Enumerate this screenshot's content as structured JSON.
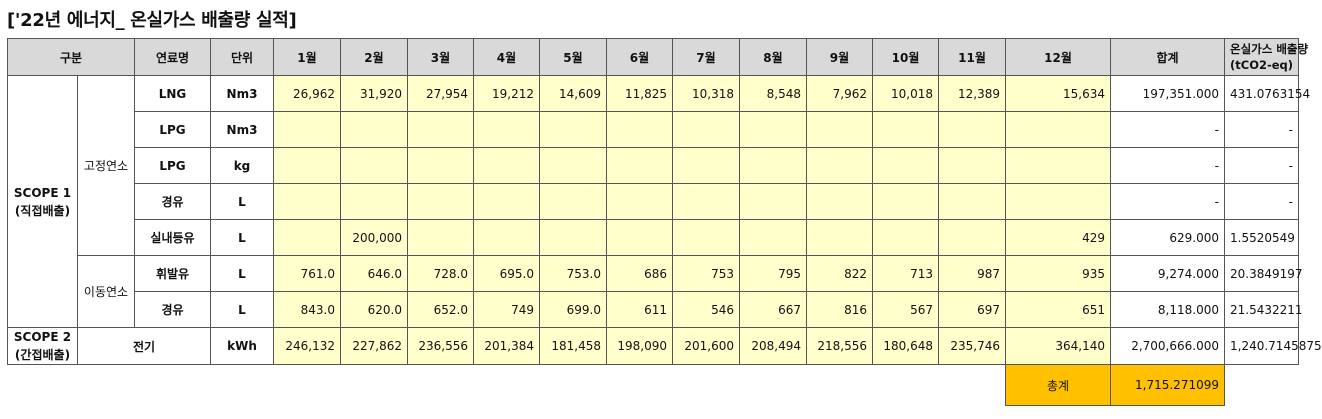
{
  "title": "['22년 에너지_ 온실가스 배출량 실적]",
  "headers": {
    "category": "구분",
    "fuel": "연료명",
    "unit": "단위",
    "months": [
      "1월",
      "2월",
      "3월",
      "4월",
      "5월",
      "6월",
      "7월",
      "8월",
      "9월",
      "10월",
      "11월",
      "12월"
    ],
    "total": "합계",
    "emission_line1": "온실가스 배출량",
    "emission_line2": "(tCO2-eq)"
  },
  "groups": {
    "scope1_line1": "SCOPE 1",
    "scope1_line2": "(직접배출)",
    "stationary": "고정연소",
    "mobile": "이동연소",
    "scope2_line1": "SCOPE 2",
    "scope2_line2": "(간접배출)",
    "electricity": "전기"
  },
  "rows": [
    {
      "fuel": "LNG",
      "unit": "Nm3",
      "months": [
        "26,962",
        "31,920",
        "27,954",
        "19,212",
        "14,609",
        "11,825",
        "10,318",
        "8,548",
        "7,962",
        "10,018",
        "12,389",
        "15,634"
      ],
      "total": "197,351.000",
      "emission": "431.0763154"
    },
    {
      "fuel": "LPG",
      "unit": "Nm3",
      "months": [
        "",
        "",
        "",
        "",
        "",
        "",
        "",
        "",
        "",
        "",
        "",
        ""
      ],
      "total": "-",
      "emission": "-"
    },
    {
      "fuel": "LPG",
      "unit": "kg",
      "months": [
        "",
        "",
        "",
        "",
        "",
        "",
        "",
        "",
        "",
        "",
        "",
        ""
      ],
      "total": "-",
      "emission": "-"
    },
    {
      "fuel": "경유",
      "unit": "L",
      "months": [
        "",
        "",
        "",
        "",
        "",
        "",
        "",
        "",
        "",
        "",
        "",
        ""
      ],
      "total": "-",
      "emission": "-"
    },
    {
      "fuel": "실내등유",
      "unit": "L",
      "months": [
        "",
        "200,000",
        "",
        "",
        "",
        "",
        "",
        "",
        "",
        "",
        "",
        "429"
      ],
      "total": "629.000",
      "emission": "1.5520549"
    },
    {
      "fuel": "휘발유",
      "unit": "L",
      "months": [
        "761.0",
        "646.0",
        "728.0",
        "695.0",
        "753.0",
        "686",
        "753",
        "795",
        "822",
        "713",
        "987",
        "935"
      ],
      "total": "9,274.000",
      "emission": "20.3849197"
    },
    {
      "fuel": "경유",
      "unit": "L",
      "months": [
        "843.0",
        "620.0",
        "652.0",
        "749",
        "699.0",
        "611",
        "546",
        "667",
        "816",
        "567",
        "697",
        "651"
      ],
      "total": "8,118.000",
      "emission": "21.5432211"
    },
    {
      "fuel": "",
      "unit": "kWh",
      "months": [
        "246,132",
        "227,862",
        "236,556",
        "201,384",
        "181,458",
        "198,090",
        "201,600",
        "208,494",
        "218,556",
        "180,648",
        "235,746",
        "364,140"
      ],
      "total": "2,700,666.000",
      "emission": "1,240.7145875"
    }
  ],
  "grand_total": {
    "label": "총계",
    "value": "1,715.271099"
  }
}
